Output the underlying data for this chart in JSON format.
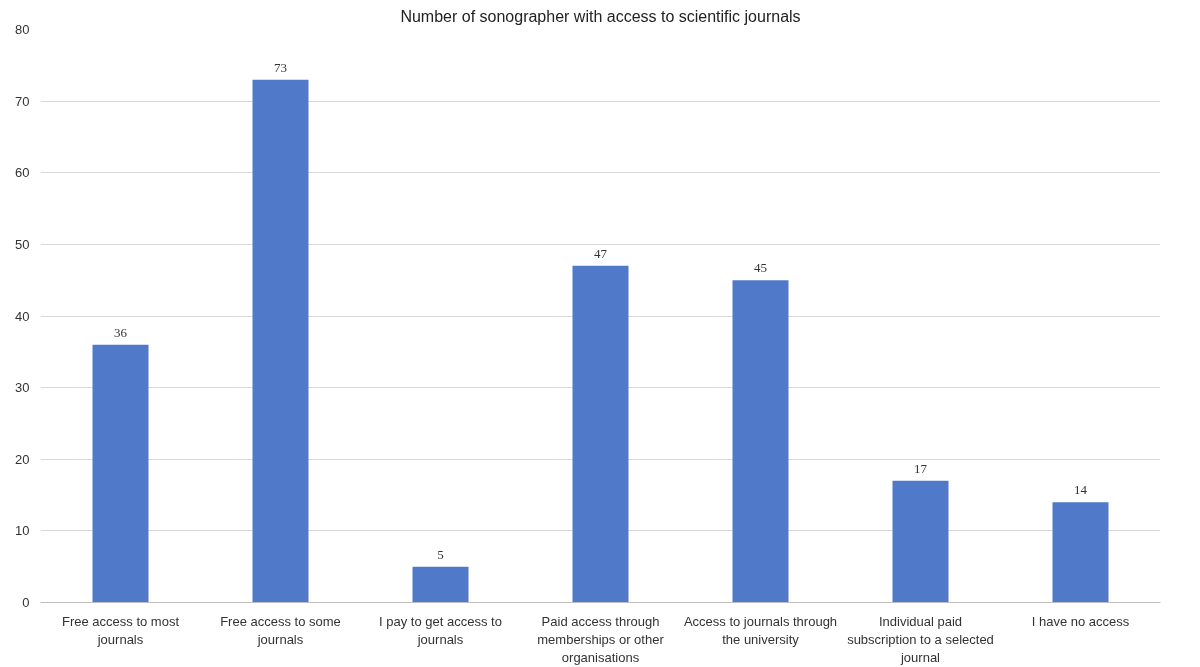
{
  "chart_data": {
    "type": "bar",
    "title": "Number of sonographer with access to scientific journals",
    "categories": [
      "Free access to most journals",
      "Free access to some journals",
      "I pay to get access to journals",
      "Paid access through memberships or other organisations",
      "Access to journals through the university",
      "Individual paid subscription to a selected journal",
      "I have no access"
    ],
    "values": [
      36,
      73,
      5,
      47,
      45,
      17,
      14
    ],
    "color": "#5079c9",
    "ylim": [
      0,
      80
    ],
    "yticks": [
      0,
      10,
      20,
      30,
      40,
      50,
      60,
      70,
      80
    ],
    "grid": "y",
    "data_labels": true
  }
}
